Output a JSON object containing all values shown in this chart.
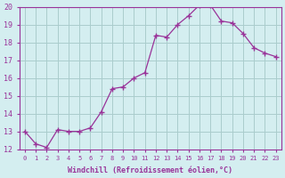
{
  "x": [
    0,
    1,
    2,
    3,
    4,
    5,
    6,
    7,
    8,
    9,
    10,
    11,
    12,
    13,
    14,
    15,
    16,
    17,
    18,
    19,
    20,
    21,
    22,
    23
  ],
  "y": [
    13.0,
    12.3,
    12.1,
    13.1,
    13.0,
    13.0,
    13.2,
    14.1,
    15.4,
    15.5,
    16.0,
    16.3,
    18.4,
    18.3,
    19.0,
    19.5,
    20.1,
    20.1,
    19.2,
    19.1,
    18.5,
    17.7,
    17.4,
    17.2
  ],
  "line_color": "#993399",
  "bg_color": "#d4eef0",
  "grid_color": "#aacccc",
  "xlabel": "Windchill (Refroidissement éolien,°C)",
  "ylim": [
    12,
    20
  ],
  "xlim_min": -0.5,
  "xlim_max": 23.5,
  "yticks": [
    12,
    13,
    14,
    15,
    16,
    17,
    18,
    19,
    20
  ],
  "xticks": [
    0,
    1,
    2,
    3,
    4,
    5,
    6,
    7,
    8,
    9,
    10,
    11,
    12,
    13,
    14,
    15,
    16,
    17,
    18,
    19,
    20,
    21,
    22,
    23
  ],
  "axis_color": "#993399",
  "tick_color": "#993399",
  "label_color": "#993399"
}
